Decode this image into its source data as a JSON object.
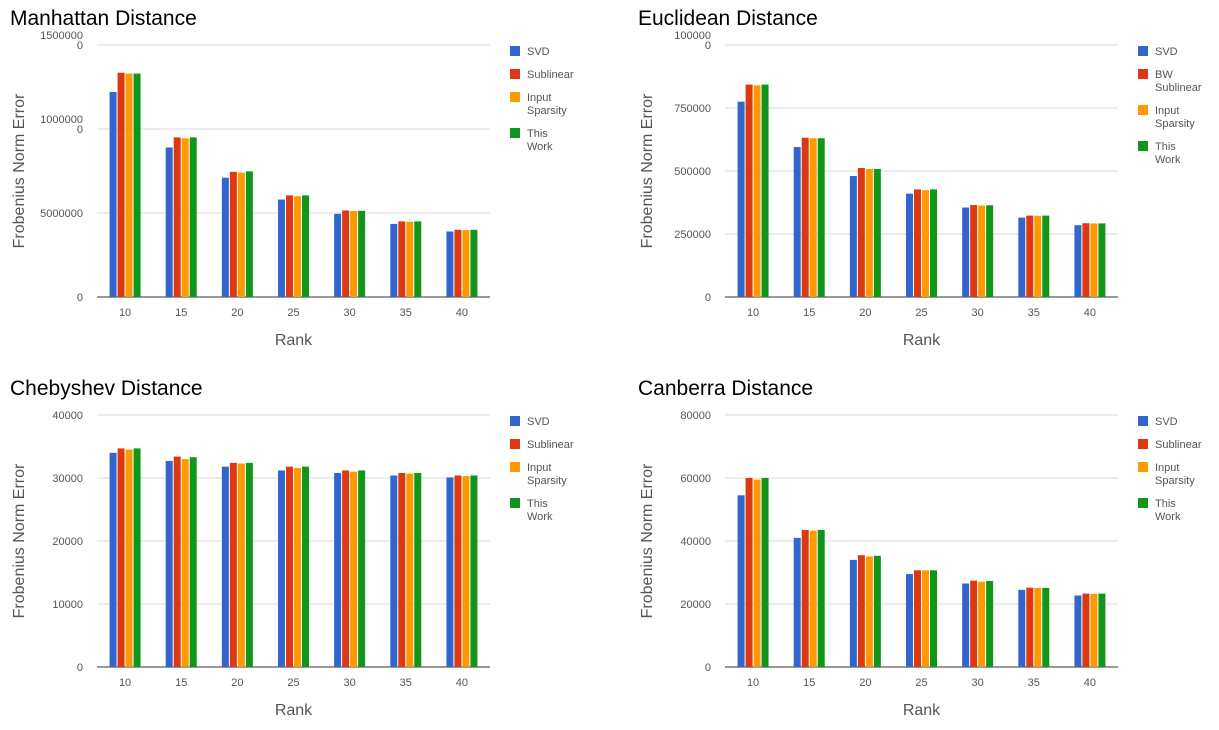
{
  "colors": {
    "svd": "#3366cc",
    "sublinear": "#dc3912",
    "input_sparsity": "#ff9900",
    "this_work": "#109618"
  },
  "chart_data": [
    {
      "type": "bar",
      "title": "Manhattan Distance",
      "xlabel": "Rank",
      "ylabel": "Frobenius Norm Error",
      "categories": [
        "10",
        "15",
        "20",
        "25",
        "30",
        "35",
        "40"
      ],
      "yticks": [
        {
          "value": 0,
          "lines": [
            "0"
          ]
        },
        {
          "value": 5000000,
          "lines": [
            "5000000"
          ]
        },
        {
          "value": 10000000,
          "lines": [
            "1000000",
            "0"
          ]
        },
        {
          "value": 15000000,
          "lines": [
            "1500000",
            "0"
          ]
        }
      ],
      "ylim": [
        0,
        15000000
      ],
      "grid": true,
      "legend_position": "right",
      "series": [
        {
          "name": "SVD",
          "color": "#3366cc",
          "values": [
            12200000,
            8900000,
            7100000,
            5800000,
            4950000,
            4350000,
            3900000
          ]
        },
        {
          "name": "Sublinear",
          "color": "#dc3912",
          "values": [
            13350000,
            9500000,
            7450000,
            6050000,
            5150000,
            4500000,
            4000000
          ]
        },
        {
          "name": "Input Sparsity",
          "color": "#ff9900",
          "values": [
            13300000,
            9450000,
            7400000,
            6000000,
            5120000,
            4480000,
            3980000
          ]
        },
        {
          "name": "This Work",
          "color": "#109618",
          "values": [
            13300000,
            9500000,
            7480000,
            6050000,
            5130000,
            4500000,
            4000000
          ]
        }
      ]
    },
    {
      "type": "bar",
      "title": "Euclidean Distance",
      "xlabel": "Rank",
      "ylabel": "Frobenius Norm Error",
      "categories": [
        "10",
        "15",
        "20",
        "25",
        "30",
        "35",
        "40"
      ],
      "yticks": [
        {
          "value": 0,
          "lines": [
            "0"
          ]
        },
        {
          "value": 250000,
          "lines": [
            "250000"
          ]
        },
        {
          "value": 500000,
          "lines": [
            "500000"
          ]
        },
        {
          "value": 750000,
          "lines": [
            "750000"
          ]
        },
        {
          "value": 1000000,
          "lines": [
            "100000",
            "0"
          ]
        }
      ],
      "ylim": [
        0,
        1000000
      ],
      "grid": true,
      "legend_position": "right",
      "series": [
        {
          "name": "SVD",
          "color": "#3366cc",
          "values": [
            775000,
            595000,
            480000,
            410000,
            355000,
            315000,
            285000
          ]
        },
        {
          "name": "BW Sublinear",
          "color": "#dc3912",
          "values": [
            843000,
            632000,
            512000,
            427000,
            365000,
            323000,
            293000
          ]
        },
        {
          "name": "Input Sparsity",
          "color": "#ff9900",
          "values": [
            840000,
            630000,
            508000,
            424000,
            363000,
            322000,
            292000
          ]
        },
        {
          "name": "This Work",
          "color": "#109618",
          "values": [
            843000,
            630000,
            508000,
            427000,
            364000,
            323000,
            292000
          ]
        }
      ]
    },
    {
      "type": "bar",
      "title": "Chebyshev Distance",
      "xlabel": "Rank",
      "ylabel": "Frobenius Norm Error",
      "categories": [
        "10",
        "15",
        "20",
        "25",
        "30",
        "35",
        "40"
      ],
      "yticks": [
        {
          "value": 0,
          "lines": [
            "0"
          ]
        },
        {
          "value": 10000,
          "lines": [
            "10000"
          ]
        },
        {
          "value": 20000,
          "lines": [
            "20000"
          ]
        },
        {
          "value": 30000,
          "lines": [
            "30000"
          ]
        },
        {
          "value": 40000,
          "lines": [
            "40000"
          ]
        }
      ],
      "ylim": [
        0,
        40000
      ],
      "grid": true,
      "legend_position": "right",
      "series": [
        {
          "name": "SVD",
          "color": "#3366cc",
          "values": [
            34000,
            32700,
            31800,
            31200,
            30800,
            30400,
            30100
          ]
        },
        {
          "name": "Sublinear",
          "color": "#dc3912",
          "values": [
            34700,
            33400,
            32400,
            31800,
            31200,
            30800,
            30400
          ]
        },
        {
          "name": "Input Sparsity",
          "color": "#ff9900",
          "values": [
            34500,
            33000,
            32300,
            31600,
            31000,
            30700,
            30300
          ]
        },
        {
          "name": "This Work",
          "color": "#109618",
          "values": [
            34700,
            33300,
            32400,
            31800,
            31200,
            30800,
            30400
          ]
        }
      ]
    },
    {
      "type": "bar",
      "title": "Canberra Distance",
      "xlabel": "Rank",
      "ylabel": "Frobenius Norm Error",
      "categories": [
        "10",
        "15",
        "20",
        "25",
        "30",
        "35",
        "40"
      ],
      "yticks": [
        {
          "value": 0,
          "lines": [
            "0"
          ]
        },
        {
          "value": 20000,
          "lines": [
            "20000"
          ]
        },
        {
          "value": 40000,
          "lines": [
            "40000"
          ]
        },
        {
          "value": 60000,
          "lines": [
            "60000"
          ]
        },
        {
          "value": 80000,
          "lines": [
            "80000"
          ]
        }
      ],
      "ylim": [
        0,
        80000
      ],
      "grid": true,
      "legend_position": "right",
      "series": [
        {
          "name": "SVD",
          "color": "#3366cc",
          "values": [
            54500,
            41000,
            34000,
            29500,
            26500,
            24500,
            22700
          ]
        },
        {
          "name": "Sublinear",
          "color": "#dc3912",
          "values": [
            60000,
            43500,
            35500,
            30700,
            27400,
            25200,
            23300
          ]
        },
        {
          "name": "Input Sparsity",
          "color": "#ff9900",
          "values": [
            59500,
            43300,
            35100,
            30700,
            27100,
            25100,
            23200
          ]
        },
        {
          "name": "This Work",
          "color": "#109618",
          "values": [
            60000,
            43500,
            35300,
            30700,
            27300,
            25100,
            23300
          ]
        }
      ]
    }
  ]
}
